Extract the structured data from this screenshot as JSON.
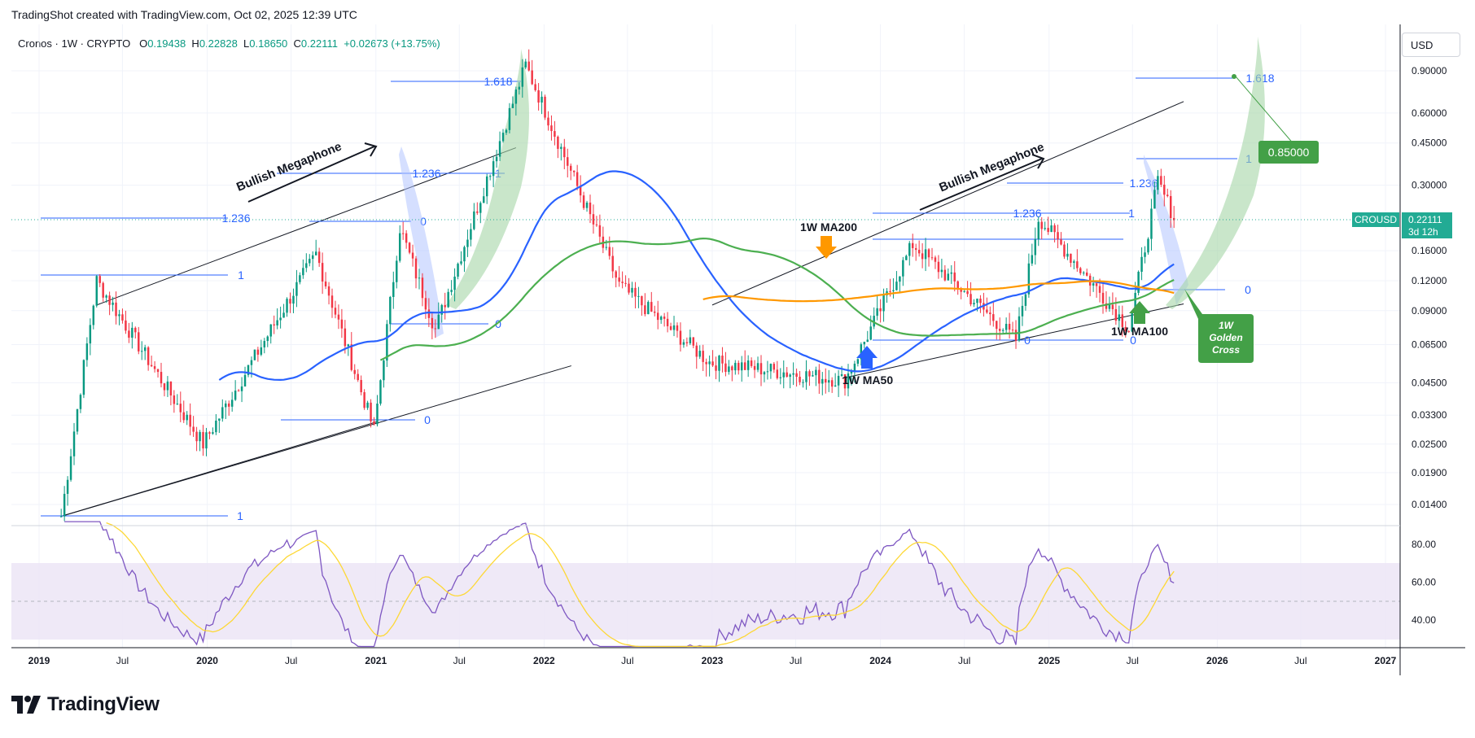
{
  "header": {
    "text": "TradingShot created with TradingView.com, Oct 02, 2025 12:39 UTC"
  },
  "legend": {
    "symbol": "Cronos · 1W · CRYPTO",
    "open_label": "O",
    "open": "0.19438",
    "high_label": "H",
    "high": "0.22828",
    "low_label": "L",
    "low": "0.18650",
    "close_label": "C",
    "close": "0.22111",
    "change": "+0.02673 (+13.75%)"
  },
  "currency_button": "USD",
  "price_tag": {
    "symbol": "CROUSD",
    "price": "0.22111",
    "countdown": "3d 12h"
  },
  "target_label": "0.85000",
  "brand": {
    "name": "TradingView"
  },
  "colors": {
    "up": "#089981",
    "down": "#f23645",
    "ma50": "#2962ff",
    "ma100": "#4caf50",
    "ma200": "#ff9800",
    "fib": "#2962ff",
    "rsi": "#7e57c2",
    "rsi_ma": "#fdd835",
    "rsi_band": "#ede7f6",
    "price_tag": "#22ab94",
    "target_tag": "#43a047"
  },
  "chart_data": {
    "type": "candlestick",
    "title": "Cronos · 1W · CRYPTO",
    "price_axis": {
      "scale": "log",
      "ticks": [
        "0.90000",
        "0.60000",
        "0.45000",
        "0.30000",
        "0.16000",
        "0.12000",
        "0.09000",
        "0.06500",
        "0.04500",
        "0.03300",
        "0.02500",
        "0.01900",
        "0.01400"
      ]
    },
    "rsi_axis": {
      "ticks": [
        "80.00",
        "60.00",
        "40.00"
      ],
      "band": [
        30,
        70
      ]
    },
    "time_axis": [
      "2019",
      "Jul",
      "2020",
      "Jul",
      "2021",
      "Jul",
      "2022",
      "Jul",
      "2023",
      "Jul",
      "2024",
      "Jul",
      "2025",
      "Jul",
      "2026",
      "Jul",
      "2027"
    ],
    "series_labels": [
      "1W MA50",
      "1W MA100",
      "1W MA200"
    ],
    "annotations": [
      {
        "text": "Bullish Megaphone"
      },
      {
        "text": "Bullish Megaphone"
      },
      {
        "text": "1W MA200"
      },
      {
        "text": "1W MA50"
      },
      {
        "text": "1W MA100"
      },
      {
        "text": "1W Golden Cross"
      }
    ],
    "fib_labels_left": [
      "1.618",
      "1.236",
      "1",
      "0",
      "1.236",
      "1",
      "0",
      "1",
      "0"
    ],
    "fib_labels_right": [
      "1.236",
      "1",
      "0",
      "1.236",
      "1",
      "0",
      "1.618",
      "0"
    ],
    "anchor_points": [
      {
        "date": "2019-02-18",
        "price": 0.0125
      },
      {
        "date": "2019-05-06",
        "price": 0.12
      },
      {
        "date": "2019-12-23",
        "price": 0.025
      },
      {
        "date": "2020-08-24",
        "price": 0.155
      },
      {
        "date": "2020-12-28",
        "price": 0.0285
      },
      {
        "date": "2021-02-22",
        "price": 0.2
      },
      {
        "date": "2021-05-10",
        "price": 0.075
      },
      {
        "date": "2021-11-22",
        "price": 0.95
      },
      {
        "date": "2022-06-13",
        "price": 0.115
      },
      {
        "date": "2022-12-26",
        "price": 0.055
      },
      {
        "date": "2023-10-16",
        "price": 0.046
      },
      {
        "date": "2024-03-11",
        "price": 0.17
      },
      {
        "date": "2024-10-21",
        "price": 0.068
      },
      {
        "date": "2024-12-09",
        "price": 0.22
      },
      {
        "date": "2025-06-23",
        "price": 0.076
      },
      {
        "date": "2025-08-25",
        "price": 0.31
      },
      {
        "date": "2025-09-29",
        "price": 0.221
      }
    ]
  }
}
